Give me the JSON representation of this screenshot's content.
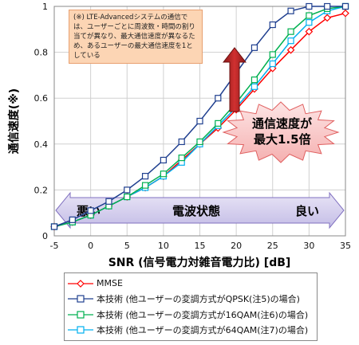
{
  "chart_data": {
    "type": "line",
    "xlabel": "SNR (信号電力対雑音電力比) [dB]",
    "ylabel": "通信速度(※)",
    "xlim": [
      -5,
      35
    ],
    "ylim": [
      0,
      1
    ],
    "xticks": [
      "-5",
      "0",
      "5",
      "10",
      "15",
      "20",
      "25",
      "30",
      "35"
    ],
    "yticks": [
      "0",
      "0.2",
      "0.4",
      "0.6",
      "0.8",
      "1"
    ],
    "grid": true,
    "series": [
      {
        "name": "MMSE",
        "color": "#ff0000",
        "marker": "diamond",
        "x": [
          -5,
          -2.5,
          0,
          2.5,
          5,
          7.5,
          10,
          12.5,
          15,
          17.5,
          20,
          22.5,
          25,
          27.5,
          30,
          32.5,
          35
        ],
        "values": [
          0.04,
          0.06,
          0.09,
          0.13,
          0.17,
          0.21,
          0.26,
          0.33,
          0.4,
          0.47,
          0.55,
          0.64,
          0.73,
          0.81,
          0.89,
          0.95,
          0.97
        ]
      },
      {
        "name": "本技術 (他ユーザーの変調方式がQPSK(注5)の場合)",
        "color": "#1f3f8f",
        "marker": "square",
        "x": [
          -5,
          -2.5,
          0,
          2.5,
          5,
          7.5,
          10,
          12.5,
          15,
          17.5,
          20,
          22.5,
          25,
          27.5,
          30,
          32.5,
          35
        ],
        "values": [
          0.04,
          0.07,
          0.11,
          0.15,
          0.2,
          0.26,
          0.33,
          0.41,
          0.5,
          0.6,
          0.71,
          0.82,
          0.92,
          0.98,
          1.0,
          1.0,
          1.0
        ]
      },
      {
        "name": "本技術 (他ユーザーの変調方式が16QAM(注6)の場合)",
        "color": "#00b050",
        "marker": "square",
        "x": [
          -5,
          -2.5,
          0,
          2.5,
          5,
          7.5,
          10,
          12.5,
          15,
          17.5,
          20,
          22.5,
          25,
          27.5,
          30,
          32.5,
          35
        ],
        "values": [
          0.04,
          0.06,
          0.09,
          0.13,
          0.17,
          0.22,
          0.27,
          0.34,
          0.41,
          0.49,
          0.58,
          0.68,
          0.79,
          0.89,
          0.96,
          0.99,
          1.0
        ]
      },
      {
        "name": "本技術 (他ユーザーの変調方式が64QAM(注7)の場合)",
        "color": "#00b0f0",
        "marker": "square",
        "x": [
          -5,
          -2.5,
          0,
          2.5,
          5,
          7.5,
          10,
          12.5,
          15,
          17.5,
          20,
          22.5,
          25,
          27.5,
          30,
          32.5,
          35
        ],
        "values": [
          0.04,
          0.06,
          0.09,
          0.13,
          0.17,
          0.21,
          0.26,
          0.32,
          0.4,
          0.48,
          0.56,
          0.65,
          0.75,
          0.85,
          0.93,
          0.98,
          1.0
        ]
      }
    ],
    "annotations": {
      "note": "(※) LTE-Advancedシステムの通信では、ユーザーごとに周波数・時間の割り当てが異なり、最大通信速度が異なるため、あるユーザーの最大通信速度を1としている",
      "burst": [
        "通信速度が",
        "最大1.5倍"
      ],
      "band_left": "悪い",
      "band_center": "電波状態",
      "band_right": "良い"
    }
  }
}
